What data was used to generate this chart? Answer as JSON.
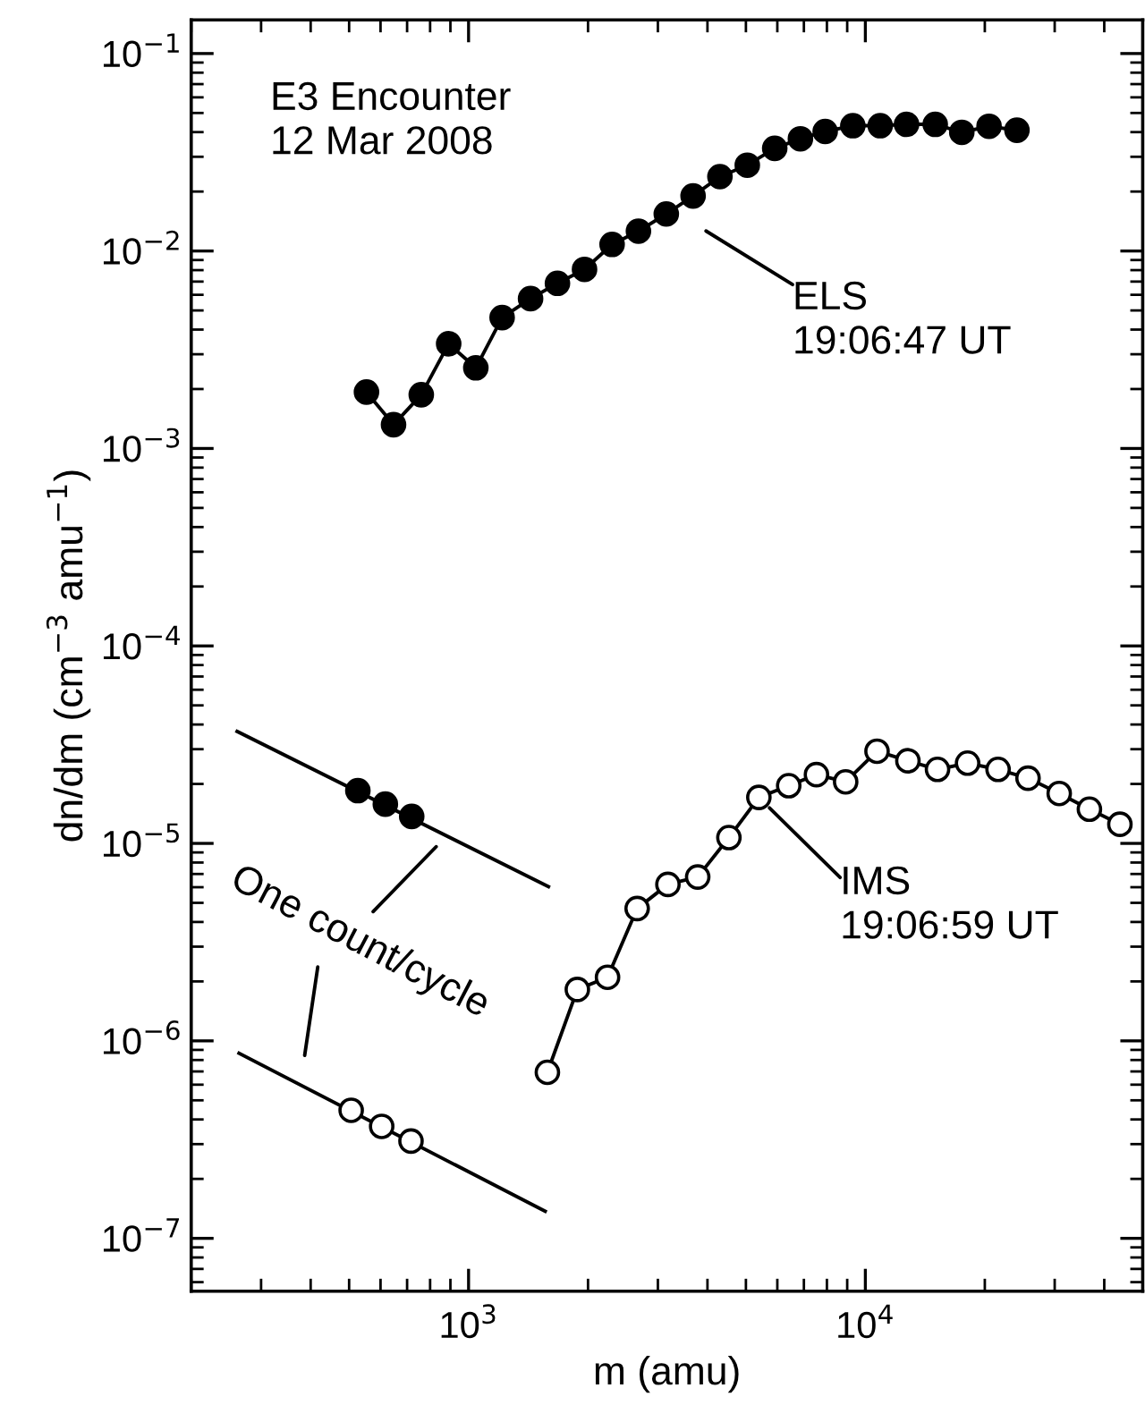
{
  "chart_data": {
    "type": "line",
    "xlabel": "m (amu)",
    "ylabel": "dn/dm (cm$^{−3}$ amu$^{−1}$)",
    "log": "xy",
    "grid": false,
    "legend": false,
    "xlim": [
      200,
      50000
    ],
    "ylim": [
      5.4e-08,
      0.148
    ],
    "xticks": [
      {
        "value": 1000,
        "label": "10$^{3}$"
      },
      {
        "value": 10000,
        "label": "10$^{4}$"
      }
    ],
    "yticks": [
      {
        "value": 1e-07,
        "label": "10$^{−7}$"
      },
      {
        "value": 1e-06,
        "label": "10$^{−6}$"
      },
      {
        "value": 1e-05,
        "label": "10$^{−5}$"
      },
      {
        "value": 0.0001,
        "label": "10$^{−4}$"
      },
      {
        "value": 0.001,
        "label": "10$^{−3}$"
      },
      {
        "value": 0.01,
        "label": "10$^{−2}$"
      },
      {
        "value": 0.1,
        "label": "10$^{−1}$"
      }
    ],
    "series": [
      {
        "marker": "circle",
        "color": "#000000",
        "x": [
          553,
          647,
          760,
          891,
          1043,
          1215,
          1433,
          1675,
          1960,
          2300,
          2680,
          3150,
          3680,
          4300,
          5040,
          5910,
          6860,
          7920,
          9300,
          10900,
          12700,
          15000,
          17500,
          20500,
          24100
        ],
        "values": [
          0.00193,
          0.00132,
          0.00187,
          0.00339,
          0.00256,
          0.0046,
          0.00574,
          0.00686,
          0.00807,
          0.0108,
          0.0126,
          0.0154,
          0.019,
          0.0238,
          0.0272,
          0.0331,
          0.037,
          0.0403,
          0.0431,
          0.0431,
          0.0438,
          0.0438,
          0.0399,
          0.0428,
          0.0409
        ]
      },
      {
        "marker": "circle",
        "color": "#ffffff",
        "x": [
          1580,
          1880,
          2240,
          2660,
          3180,
          3780,
          4530,
          5390,
          6410,
          7530,
          8920,
          10700,
          12800,
          15200,
          18100,
          21600,
          25700,
          30800,
          36700,
          43800
        ],
        "values": [
          6.93e-07,
          1.82e-06,
          2.1e-06,
          4.68e-06,
          6.2e-06,
          6.76e-06,
          1.07e-05,
          1.71e-05,
          1.96e-05,
          2.23e-05,
          2.05e-05,
          2.93e-05,
          2.62e-05,
          2.37e-05,
          2.55e-05,
          2.37e-05,
          2.14e-05,
          1.79e-05,
          1.49e-05,
          1.25e-05
        ]
      },
      {
        "marker": "none",
        "color": "#000000",
        "x": [
          261,
          1590
        ],
        "values": [
          3.69e-05,
          6.04e-06
        ]
      },
      {
        "marker": "none",
        "color": "#000000",
        "x": [
          264,
          1560
        ],
        "values": [
          8.65e-07,
          1.37e-07
        ]
      },
      {
        "type": "scatter",
        "marker": "circle",
        "color": "#000000",
        "x": [
          526,
          617,
          719
        ],
        "values": [
          1.85e-05,
          1.58e-05,
          1.37e-05
        ]
      },
      {
        "type": "scatter",
        "marker": "circle",
        "color": "#ffffff",
        "x": [
          506,
          604,
          716
        ],
        "values": [
          4.45e-07,
          3.69e-07,
          3.11e-07
        ]
      }
    ],
    "annotations": [
      "E3 Encounter\n12 Mar 2008",
      "ELS\n19:06:47 UT",
      {
        "text": "IMS\n19:06:59 UT",
        "x": 5390,
        "y": 1.71e-05
      },
      {
        "text": "One count/cycle",
        "x": 880,
        "y": 1.09e-05
      }
    ]
  }
}
